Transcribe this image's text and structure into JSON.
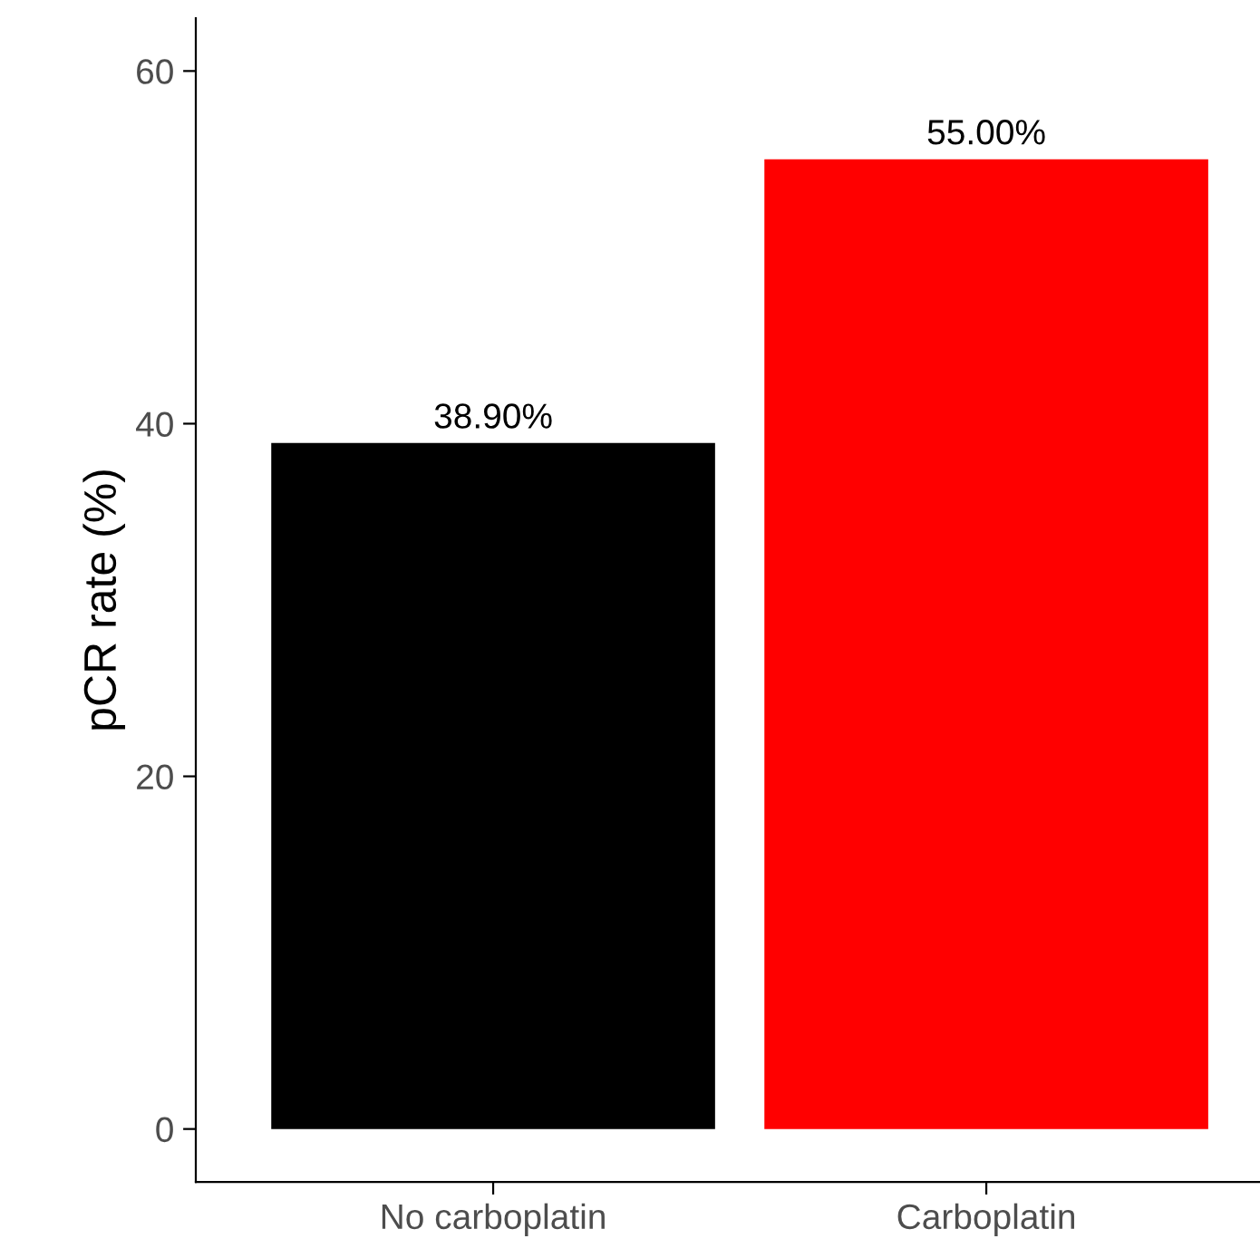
{
  "chart_data": {
    "type": "bar",
    "ylabel": "pCR rate (%)",
    "categories": [
      "No carboplatin",
      "Carboplatin"
    ],
    "values": [
      38.9,
      55.0
    ],
    "colors": [
      "#000000",
      "#ff0000"
    ],
    "value_labels": [
      "38.90%",
      "55.00%"
    ],
    "ylim": [
      -3,
      63
    ],
    "yticks": [
      0,
      20,
      40,
      60
    ],
    "grid": false,
    "legend": false
  }
}
